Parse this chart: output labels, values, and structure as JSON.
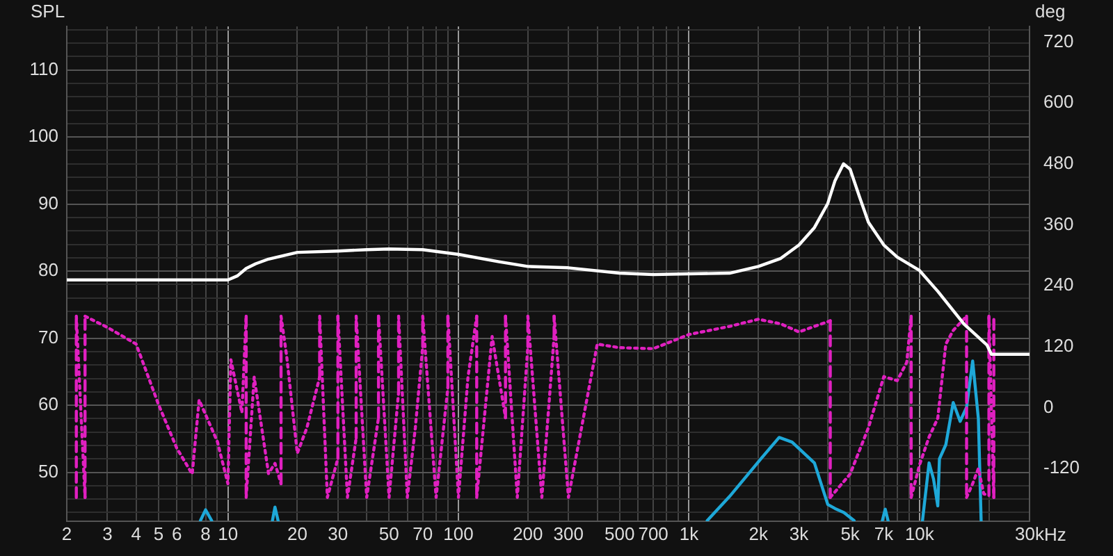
{
  "chart_data": {
    "type": "line",
    "ylabel": "SPL",
    "y2label": "deg",
    "log": "x",
    "grid": true,
    "marker": "none",
    "xlim": [
      2,
      30000
    ],
    "xticks": [
      {
        "value": 2,
        "label": "2"
      },
      {
        "value": 3,
        "label": "3"
      },
      {
        "value": 4,
        "label": "4"
      },
      {
        "value": 5,
        "label": "5"
      },
      {
        "value": 6,
        "label": "6"
      },
      {
        "value": 7,
        "label": null
      },
      {
        "value": 8,
        "label": "8"
      },
      {
        "value": 9,
        "label": null
      },
      {
        "value": 10,
        "label": "10"
      },
      {
        "value": 20,
        "label": "20"
      },
      {
        "value": 30,
        "label": "30"
      },
      {
        "value": 40,
        "label": null
      },
      {
        "value": 50,
        "label": "50"
      },
      {
        "value": 60,
        "label": null
      },
      {
        "value": 70,
        "label": "70"
      },
      {
        "value": 80,
        "label": null
      },
      {
        "value": 90,
        "label": null
      },
      {
        "value": 100,
        "label": "100"
      },
      {
        "value": 200,
        "label": "200"
      },
      {
        "value": 300,
        "label": "300"
      },
      {
        "value": 400,
        "label": null
      },
      {
        "value": 500,
        "label": "500"
      },
      {
        "value": 600,
        "label": null
      },
      {
        "value": 700,
        "label": "700"
      },
      {
        "value": 800,
        "label": null
      },
      {
        "value": 900,
        "label": null
      },
      {
        "value": 1000,
        "label": "1k"
      },
      {
        "value": 2000,
        "label": "2k"
      },
      {
        "value": 3000,
        "label": "3k"
      },
      {
        "value": 4000,
        "label": null
      },
      {
        "value": 5000,
        "label": "5k"
      },
      {
        "value": 6000,
        "label": null
      },
      {
        "value": 7000,
        "label": "7k"
      },
      {
        "value": 8000,
        "label": null
      },
      {
        "value": 9000,
        "label": null
      },
      {
        "value": 10000,
        "label": "10k"
      },
      {
        "value": 20000,
        "label": null
      },
      {
        "value": 30000,
        "label": "30k"
      }
    ],
    "xlabel": "Hz",
    "ylim": [
      42.7,
      116.5
    ],
    "yticks": [
      {
        "value": 44,
        "label": null
      },
      {
        "value": 46,
        "label": null
      },
      {
        "value": 48,
        "label": null
      },
      50,
      {
        "value": 52,
        "label": null
      },
      {
        "value": 54,
        "label": null
      },
      {
        "value": 56,
        "label": null
      },
      {
        "value": 58,
        "label": null
      },
      60,
      {
        "value": 62,
        "label": null
      },
      {
        "value": 64,
        "label": null
      },
      {
        "value": 66,
        "label": null
      },
      {
        "value": 68,
        "label": null
      },
      70,
      {
        "value": 72,
        "label": null
      },
      {
        "value": 74,
        "label": null
      },
      {
        "value": 76,
        "label": null
      },
      {
        "value": 78,
        "label": null
      },
      80,
      {
        "value": 82,
        "label": null
      },
      {
        "value": 84,
        "label": null
      },
      {
        "value": 86,
        "label": null
      },
      {
        "value": 88,
        "label": null
      },
      90,
      {
        "value": 92,
        "label": null
      },
      {
        "value": 94,
        "label": null
      },
      {
        "value": 96,
        "label": null
      },
      {
        "value": 98,
        "label": null
      },
      100,
      {
        "value": 102,
        "label": null
      },
      {
        "value": 104,
        "label": null
      },
      {
        "value": 106,
        "label": null
      },
      {
        "value": 108,
        "label": null
      },
      110,
      {
        "value": 112,
        "label": null
      },
      {
        "value": 114,
        "label": null
      },
      {
        "value": 116,
        "label": null
      }
    ],
    "y2lim": [
      -224,
      751
    ],
    "y2ticks": [
      -120,
      0,
      120,
      240,
      360,
      480,
      600,
      720
    ],
    "series": [
      {
        "color": "#ffffff",
        "line_style": "solid",
        "x": [
          2,
          10,
          11,
          12,
          13.2,
          15,
          20,
          30,
          40,
          50,
          70,
          100,
          150,
          200,
          300,
          500,
          700,
          1000,
          1500,
          2000,
          2500,
          3000,
          3500,
          4000,
          4300,
          4680,
          5000,
          5500,
          6000,
          7000,
          8000,
          10000,
          12000,
          15600,
          19600,
          20500,
          30000
        ],
        "values": [
          78.7,
          78.7,
          79.3,
          80.4,
          81.1,
          81.8,
          82.8,
          83.0,
          83.2,
          83.3,
          83.2,
          82.5,
          81.4,
          80.7,
          80.5,
          79.7,
          79.5,
          79.6,
          79.7,
          80.7,
          81.9,
          83.9,
          86.5,
          90.1,
          93.5,
          96.0,
          95.2,
          91.0,
          87.3,
          83.9,
          82.1,
          80.1,
          77.0,
          72.1,
          69.0,
          67.6,
          67.6
        ]
      },
      {
        "color": "#e020c0",
        "axis": "y2",
        "line_style": "dotted",
        "x": [
          2.2,
          2.2,
          2.4,
          2.4,
          3,
          4,
          5,
          6,
          7,
          7.5,
          9,
          10,
          10.3,
          11.5,
          12,
          12,
          13,
          15,
          16,
          17,
          17,
          18,
          20,
          22,
          25,
          25,
          27,
          30,
          30,
          33,
          36,
          36,
          40,
          45,
          45,
          50,
          55,
          55,
          60,
          65,
          70,
          70,
          80,
          90,
          90,
          100,
          110,
          120,
          120,
          140,
          160,
          160,
          180,
          200,
          200,
          230,
          260,
          260,
          300,
          400,
          500,
          700,
          1000,
          1500,
          2000,
          2500,
          3000,
          3500,
          4100,
          4100,
          5000,
          6000,
          7000,
          8000,
          8800,
          9200,
          9200,
          10000,
          11000,
          12000,
          13000,
          14000,
          16000,
          16000,
          17000,
          18000,
          19000,
          20000,
          20000,
          21000,
          21000
        ],
        "values": [
          -177,
          180,
          -177,
          180,
          158,
          125,
          6,
          -80,
          -131,
          15,
          -67,
          -150,
          94,
          -10,
          180,
          -177,
          60,
          -130,
          -110,
          -150,
          180,
          100,
          -90,
          -40,
          60,
          180,
          -177,
          -100,
          180,
          -177,
          -60,
          180,
          -177,
          -20,
          180,
          -177,
          30,
          180,
          -177,
          -40,
          120,
          180,
          -177,
          40,
          180,
          -177,
          60,
          180,
          -177,
          140,
          -20,
          180,
          -177,
          120,
          180,
          -177,
          140,
          180,
          -177,
          125,
          118,
          116,
          144,
          160,
          174,
          165,
          149,
          160,
          171,
          -177,
          -131,
          -40,
          61,
          53,
          89,
          180,
          -177,
          -113,
          -58,
          -21,
          125,
          152,
          180,
          -177,
          -150,
          -120,
          -170,
          -173,
          180,
          -177,
          180
        ]
      },
      {
        "color": "#1ea8d8",
        "line_style": "solid",
        "x": [
          7.6,
          8,
          8.5,
          9,
          15.6,
          16,
          16.5,
          100,
          1200,
          1500,
          2060,
          2460,
          2800,
          3500,
          4000,
          4300,
          4700,
          5200,
          6000,
          6900,
          7100,
          7300,
          8000,
          10300,
          11000,
          11500,
          12000,
          12200,
          13000,
          14000,
          15000,
          16000,
          17000,
          18000,
          18500
        ],
        "values": [
          42.8,
          44.4,
          42.8,
          null,
          42.8,
          44.8,
          42.8,
          null,
          42.8,
          46.4,
          52.1,
          55.2,
          54.5,
          51.4,
          45.2,
          44.6,
          44.0,
          42.8,
          null,
          42.8,
          44.5,
          42.8,
          null,
          42.8,
          51.4,
          49.0,
          45.0,
          52.0,
          54.1,
          60.4,
          57.6,
          59.7,
          66.6,
          58.0,
          42.8
        ]
      }
    ]
  }
}
